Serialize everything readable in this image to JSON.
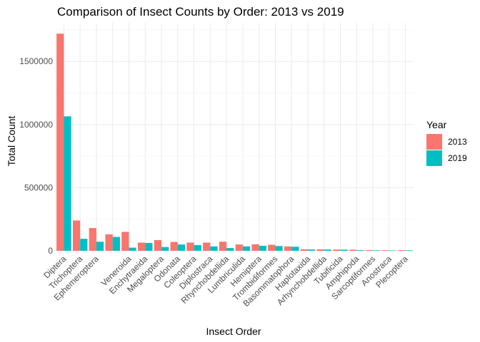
{
  "chart_data": {
    "type": "bar",
    "title": "Comparison of Insect Counts by Order: 2013 vs 2019",
    "xlabel": "Insect Order",
    "ylabel": "Total Count",
    "categories": [
      "Diptera",
      "Trichoptera",
      "Ephemeroptera",
      "",
      "Veneroida",
      "Enchytraeida",
      "Megaloptera",
      "Odonata",
      "Coleoptera",
      "Diplostraca",
      "Rhynchobdellida",
      "Lumbriculida",
      "Hemiptera",
      "Trombidiformes",
      "Basommatophora",
      "Haplotaxida",
      "Arhynchobdellida",
      "Tubificida",
      "Amphipoda",
      "Sarcoptiformes",
      "Anostraca",
      "Plecoptera"
    ],
    "series": [
      {
        "name": "2013",
        "color": "#F8766D",
        "values": [
          1720000,
          240000,
          180000,
          130000,
          150000,
          65000,
          85000,
          70000,
          65000,
          65000,
          72000,
          50000,
          52000,
          48000,
          35000,
          12000,
          12000,
          10000,
          9000,
          6000,
          5000,
          5000
        ]
      },
      {
        "name": "2019",
        "color": "#00BFC4",
        "values": [
          1065000,
          95000,
          72000,
          110000,
          25000,
          62000,
          30000,
          50000,
          45000,
          35000,
          22000,
          35000,
          40000,
          38000,
          32000,
          10000,
          10000,
          9000,
          5000,
          4000,
          3000,
          4000
        ]
      }
    ],
    "yticks": [
      0,
      500000,
      1000000,
      1500000
    ],
    "ytick_labels": [
      "0",
      "500000",
      "1000000",
      "1500000"
    ],
    "ylim": [
      0,
      1806000
    ],
    "grid": true,
    "legend": {
      "title": "Year",
      "position": "right"
    }
  }
}
